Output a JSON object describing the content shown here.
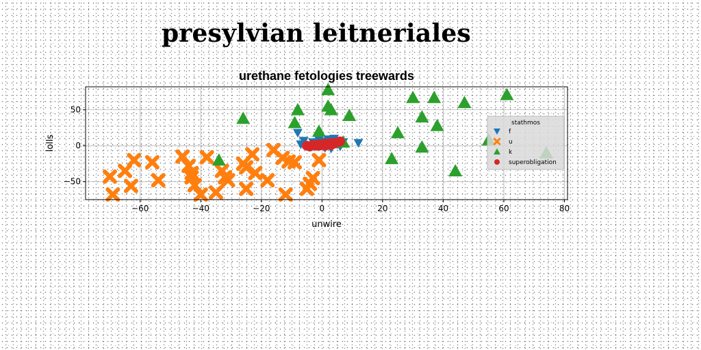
{
  "page": {
    "title": "presylvian leitneriales"
  },
  "chart_data": {
    "type": "scatter",
    "title": "urethane fetologies treewards",
    "xlabel": "unwire",
    "ylabel": "lolls",
    "xlim": [
      -78,
      81
    ],
    "ylim": [
      -75,
      82
    ],
    "xticks": [
      -60,
      -40,
      -20,
      0,
      20,
      40,
      60,
      80
    ],
    "yticks": [
      -50,
      0,
      50
    ],
    "xtick_labels": [
      "−60",
      "−40",
      "−20",
      "0",
      "20",
      "40",
      "60",
      "80"
    ],
    "ytick_labels": [
      "−50",
      "0",
      "50"
    ],
    "grid": true,
    "legend": {
      "title": "stathmos",
      "placement": "right"
    },
    "series": [
      {
        "name": "f",
        "marker": "triangle-down",
        "color": "#1f77b4",
        "points": [
          [
            -8,
            18
          ],
          [
            -7,
            2
          ],
          [
            -5,
            0
          ],
          [
            -3,
            5
          ],
          [
            -2,
            1
          ],
          [
            -1,
            8
          ],
          [
            0,
            3
          ],
          [
            1,
            6
          ],
          [
            2,
            0
          ],
          [
            3,
            4
          ],
          [
            4,
            10
          ],
          [
            5,
            2
          ],
          [
            6,
            -1
          ],
          [
            7,
            5
          ],
          [
            -4,
            -2
          ],
          [
            1,
            -3
          ],
          [
            3,
            -4
          ],
          [
            12,
            4
          ],
          [
            -6,
            7
          ],
          [
            2,
            9
          ]
        ]
      },
      {
        "name": "u",
        "marker": "x",
        "color": "#ff7f0e",
        "points": [
          [
            -70,
            -43
          ],
          [
            -69,
            -68
          ],
          [
            -65,
            -35
          ],
          [
            -63,
            -56
          ],
          [
            -62,
            -20
          ],
          [
            -56,
            -23
          ],
          [
            -54,
            -48
          ],
          [
            -46,
            -15
          ],
          [
            -44,
            -28
          ],
          [
            -43,
            -38
          ],
          [
            -43,
            -44
          ],
          [
            -42,
            -55
          ],
          [
            -40,
            -68
          ],
          [
            -38,
            -16
          ],
          [
            -35,
            -65
          ],
          [
            -33,
            -35
          ],
          [
            -32,
            -44
          ],
          [
            -31,
            -48
          ],
          [
            -26,
            -25
          ],
          [
            -25,
            -30
          ],
          [
            -25,
            -60
          ],
          [
            -23,
            -12
          ],
          [
            -22,
            -38
          ],
          [
            -18,
            -48
          ],
          [
            -16,
            -6
          ],
          [
            -13,
            -17
          ],
          [
            -12,
            -68
          ],
          [
            -11,
            -22
          ],
          [
            -9,
            -23
          ],
          [
            -5,
            -60
          ],
          [
            -4,
            -53
          ],
          [
            -3,
            -45
          ],
          [
            -1,
            -20
          ]
        ]
      },
      {
        "name": "k",
        "marker": "triangle-up",
        "color": "#2ca02c",
        "points": [
          [
            -34,
            -20
          ],
          [
            -26,
            38
          ],
          [
            -9,
            32
          ],
          [
            -8,
            50
          ],
          [
            -1,
            20
          ],
          [
            2,
            78
          ],
          [
            2,
            55
          ],
          [
            3,
            50
          ],
          [
            7,
            5
          ],
          [
            9,
            42
          ],
          [
            23,
            -18
          ],
          [
            25,
            18
          ],
          [
            30,
            67
          ],
          [
            33,
            40
          ],
          [
            33,
            -2
          ],
          [
            37,
            67
          ],
          [
            38,
            28
          ],
          [
            44,
            -35
          ],
          [
            47,
            60
          ],
          [
            55,
            8
          ],
          [
            61,
            71
          ],
          [
            74,
            -10
          ]
        ]
      },
      {
        "name": "superobligation",
        "marker": "circle",
        "color": "#d62728",
        "points": [
          [
            -5,
            0
          ],
          [
            -4,
            -1
          ],
          [
            -3,
            1
          ],
          [
            -2,
            0
          ],
          [
            -1,
            2
          ],
          [
            0,
            1
          ],
          [
            1,
            3
          ],
          [
            2,
            2
          ],
          [
            3,
            4
          ],
          [
            4,
            3
          ],
          [
            5,
            5
          ],
          [
            6,
            6
          ],
          [
            -1,
            0
          ],
          [
            1,
            0
          ],
          [
            3,
            1
          ]
        ]
      }
    ]
  }
}
